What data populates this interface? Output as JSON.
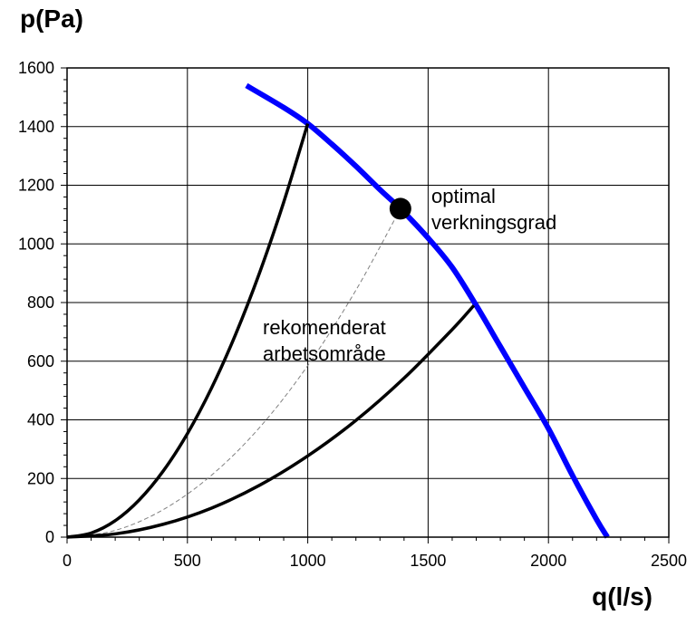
{
  "chart_data": {
    "type": "line",
    "title": "",
    "ylabel": "p(Pa)",
    "xlabel": "q(l/s)",
    "xlim": [
      0,
      2500
    ],
    "ylim": [
      0,
      1600
    ],
    "xticks": [
      0,
      500,
      1000,
      1500,
      2000,
      2500
    ],
    "yticks": [
      0,
      200,
      400,
      600,
      800,
      1000,
      1200,
      1400,
      1600
    ],
    "grid": true,
    "series": [
      {
        "name": "fan-curve",
        "color": "#0000ff",
        "x": [
          745,
          900,
          1000,
          1100,
          1200,
          1300,
          1385,
          1500,
          1600,
          1700,
          1800,
          1900,
          2000,
          2100,
          2200,
          2245
        ],
        "y": [
          1540,
          1465,
          1410,
          1340,
          1265,
          1185,
          1120,
          1020,
          920,
          790,
          650,
          510,
          370,
          210,
          60,
          0
        ]
      },
      {
        "name": "upper-limit-curve",
        "color": "#000000",
        "x": [
          0,
          100,
          200,
          300,
          400,
          500,
          600,
          700,
          800,
          900,
          1000
        ],
        "y": [
          0,
          14,
          56,
          127,
          226,
          353,
          508,
          691,
          902,
          1142,
          1410
        ]
      },
      {
        "name": "optimal-curve",
        "color": "#808080",
        "dashed": true,
        "x": [
          0,
          200,
          400,
          600,
          800,
          1000,
          1200,
          1385
        ],
        "y": [
          0,
          23,
          94,
          211,
          374,
          585,
          842,
          1120
        ]
      },
      {
        "name": "lower-limit-curve",
        "color": "#000000",
        "x": [
          0,
          200,
          400,
          600,
          800,
          1000,
          1200,
          1400,
          1600,
          1690
        ],
        "y": [
          0,
          11,
          44,
          99,
          177,
          277,
          398,
          542,
          708,
          790
        ]
      }
    ],
    "points": [
      {
        "name": "optimal-point",
        "x": 1385,
        "y": 1120,
        "color": "#000000"
      }
    ],
    "annotations": [
      {
        "name": "optimal-label",
        "lines": [
          "optimal",
          "verkningsgrad"
        ]
      },
      {
        "name": "recommended-label",
        "lines": [
          "rekomenderat",
          "arbetsområde"
        ]
      }
    ]
  }
}
